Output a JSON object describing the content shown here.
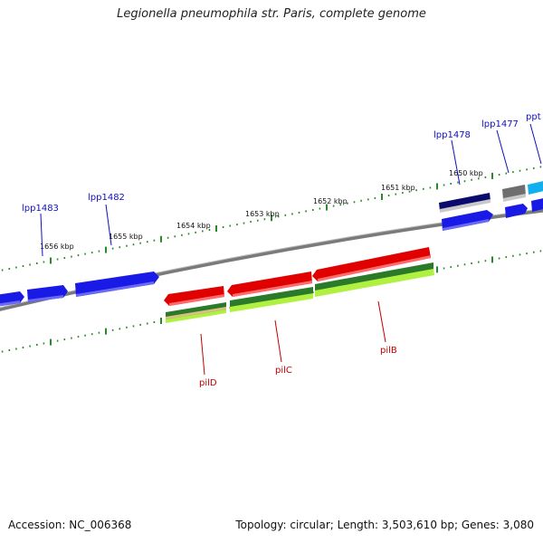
{
  "title": "Legionella pneumophila str. Paris, complete genome",
  "footer": {
    "accession": "Accession: NC_006368",
    "summary": "Topology: circular; Length: 3,503,610 bp; Genes: 3,080"
  },
  "colors": {
    "backbone": "#8a8a8a",
    "tick": "#2a8a2a",
    "forward_gene": "#1a1ae6",
    "reverse_gene": "#e00000",
    "label_blue": "#1010c0",
    "label_red": "#c00000"
  },
  "scale_labels": [
    "1650 kbp",
    "1651 kbp",
    "1652 kbp",
    "1653 kbp",
    "1654 kbp",
    "1655 kbp",
    "1656 kbp"
  ],
  "genes_top": [
    "lpp1483",
    "lpp1482",
    "lpp1478",
    "lpp1477",
    "ppt"
  ],
  "genes_bottom": [
    "pilD",
    "pilC",
    "pilB"
  ]
}
